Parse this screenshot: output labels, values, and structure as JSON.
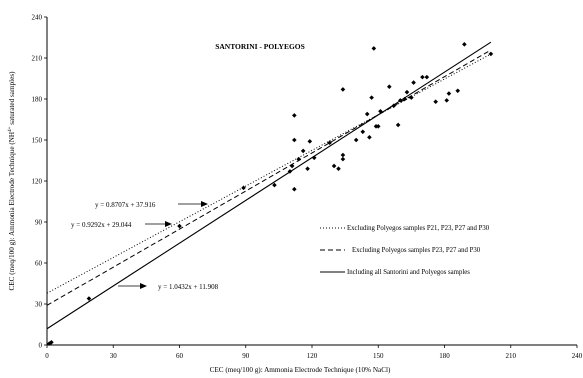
{
  "chart_data": {
    "type": "scatter",
    "title": "SANTORINI - POLYEGOS",
    "xlabel": "CEC (meq/100 g): Ammonia Electrode Technique (10% NaCl)",
    "ylabel": "CEC (meq/100 g): Ammonia Electrode Technique (NH4+ saturated samples)",
    "xlim": [
      0,
      240
    ],
    "ylim": [
      0,
      240
    ],
    "xticks": [
      "0",
      "30",
      "60",
      "90",
      "120",
      "150",
      "180",
      "210",
      "240"
    ],
    "yticks": [
      "0",
      "30",
      "60",
      "90",
      "120",
      "150",
      "180",
      "210",
      "240"
    ],
    "grid": false,
    "legend_position": "right",
    "points": [
      [
        1,
        1
      ],
      [
        2,
        2
      ],
      [
        19,
        34
      ],
      [
        60,
        87
      ],
      [
        89,
        115
      ],
      [
        103,
        117
      ],
      [
        110,
        127
      ],
      [
        111,
        131
      ],
      [
        112,
        150
      ],
      [
        112,
        168
      ],
      [
        112,
        114
      ],
      [
        114,
        136
      ],
      [
        116,
        142
      ],
      [
        118,
        129
      ],
      [
        119,
        149
      ],
      [
        121,
        137
      ],
      [
        128,
        148
      ],
      [
        130,
        131
      ],
      [
        132,
        129
      ],
      [
        134,
        136
      ],
      [
        134,
        139
      ],
      [
        134,
        187
      ],
      [
        140,
        150
      ],
      [
        143,
        156
      ],
      [
        145,
        169
      ],
      [
        146,
        152
      ],
      [
        147,
        181
      ],
      [
        148,
        217
      ],
      [
        149,
        160
      ],
      [
        150,
        160
      ],
      [
        151,
        171
      ],
      [
        155,
        189
      ],
      [
        157,
        175
      ],
      [
        159,
        161
      ],
      [
        160,
        179
      ],
      [
        162,
        180
      ],
      [
        163,
        185
      ],
      [
        165,
        181
      ],
      [
        166,
        192
      ],
      [
        170,
        196
      ],
      [
        172,
        196
      ],
      [
        176,
        178
      ],
      [
        181,
        179
      ],
      [
        182,
        184
      ],
      [
        186,
        186
      ],
      [
        189,
        220
      ],
      [
        201,
        213
      ]
    ],
    "series": [
      {
        "name": "Excluding Polyegos samples P21, P23, P27 and P30",
        "style": "dotted",
        "slope": 0.8707,
        "intercept": 37.916,
        "x_range": [
          0,
          201
        ],
        "equation": "y = 0.8707x + 37.916"
      },
      {
        "name": "Excluding Polyegos samples P23, P27 and P30",
        "style": "dashed",
        "slope": 0.9292,
        "intercept": 29.044,
        "x_range": [
          0,
          201
        ],
        "equation": "y = 0.9292x + 29.044"
      },
      {
        "name": "Including all Santorini and Polyegos samples",
        "style": "solid",
        "slope": 1.0432,
        "intercept": 11.908,
        "x_range": [
          0,
          201
        ],
        "equation": "y = 1.0432x + 11.908"
      }
    ]
  }
}
